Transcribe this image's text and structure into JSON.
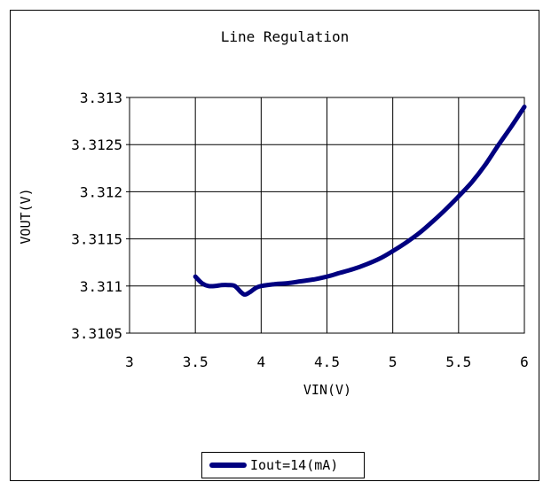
{
  "chart_data": {
    "type": "line",
    "title": "Line Regulation",
    "xlabel": "VIN(V)",
    "ylabel": "VOUT(V)",
    "xlim": [
      3,
      6
    ],
    "ylim": [
      3.3105,
      3.313
    ],
    "x_ticks": [
      "3",
      "3.5",
      "4",
      "4.5",
      "5",
      "5.5",
      "6"
    ],
    "y_ticks": [
      "3.313",
      "3.3125",
      "3.312",
      "3.3115",
      "3.311",
      "3.3105"
    ],
    "grid": true,
    "legend_position": "bottom",
    "series": [
      {
        "name": "Iout=14(mA)",
        "color": "#000080",
        "x": [
          3.5,
          3.55,
          3.6,
          3.65,
          3.7,
          3.75,
          3.8,
          3.85,
          3.88,
          3.92,
          3.96,
          4.0,
          4.1,
          4.2,
          4.3,
          4.4,
          4.5,
          4.6,
          4.7,
          4.8,
          4.9,
          5.0,
          5.1,
          5.2,
          5.3,
          5.4,
          5.5,
          5.6,
          5.7,
          5.8,
          5.9,
          6.0
        ],
        "y": [
          3.3111,
          3.31103,
          3.311,
          3.311,
          3.31101,
          3.31101,
          3.311,
          3.31093,
          3.31091,
          3.31094,
          3.31098,
          3.311,
          3.31102,
          3.31103,
          3.31105,
          3.31107,
          3.3111,
          3.31114,
          3.31118,
          3.31123,
          3.31129,
          3.31137,
          3.31146,
          3.31156,
          3.31168,
          3.31181,
          3.31195,
          3.3121,
          3.31228,
          3.31249,
          3.31269,
          3.3129
        ]
      }
    ]
  }
}
